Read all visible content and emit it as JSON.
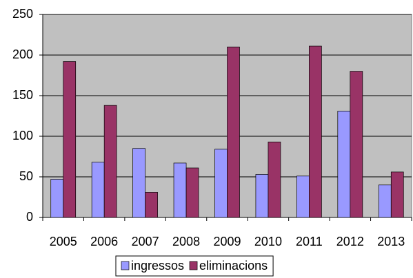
{
  "chart_data": {
    "type": "bar",
    "categories": [
      "2005",
      "2006",
      "2007",
      "2008",
      "2009",
      "2010",
      "2011",
      "2012",
      "2013"
    ],
    "series": [
      {
        "name": "ingressos",
        "color": "#9999ff",
        "values": [
          47,
          68,
          85,
          67,
          84,
          53,
          51,
          131,
          40
        ]
      },
      {
        "name": "eliminacions",
        "color": "#993366",
        "values": [
          192,
          138,
          31,
          61,
          210,
          93,
          211,
          180,
          56
        ]
      }
    ],
    "ylim": [
      0,
      250
    ],
    "yticks": [
      0,
      50,
      100,
      150,
      200,
      250
    ],
    "grid": true,
    "legend": "bottom"
  }
}
